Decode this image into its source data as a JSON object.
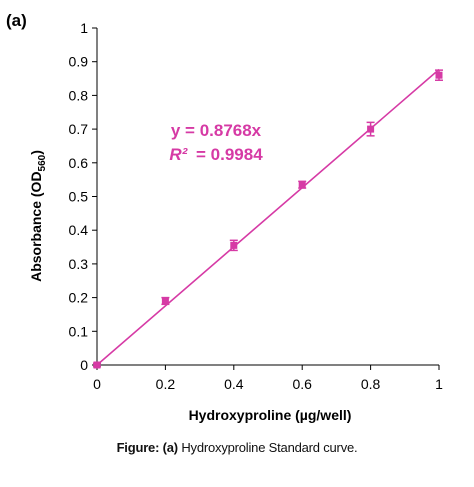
{
  "panel_label": "(a)",
  "caption": {
    "prefix": "Figure: (a)",
    "text": "Hydroxyproline Standard curve."
  },
  "colors": {
    "series": "#d63aa5",
    "axis": "#000000"
  },
  "chart_data": {
    "type": "scatter",
    "xlabel": "Hydroxyproline  (µg/well)",
    "ylabel_main": "Absorbance  (OD",
    "ylabel_sub": "560",
    "ylabel_end": ")",
    "xlim": [
      0,
      1
    ],
    "ylim": [
      0,
      1
    ],
    "x_ticks": [
      "0",
      "0.2",
      "0.4",
      "0.6",
      "0.8",
      "1"
    ],
    "y_ticks": [
      "0",
      "0.1",
      "0.2",
      "0.3",
      "0.4",
      "0.5",
      "0.6",
      "0.7",
      "0.8",
      "0.9",
      "1"
    ],
    "grid": false,
    "series": [
      {
        "marker": "square",
        "x": [
          0,
          0.2,
          0.4,
          0.6,
          0.8,
          1.0
        ],
        "y": [
          0,
          0.19,
          0.355,
          0.535,
          0.7,
          0.86
        ],
        "error": [
          0.005,
          0.01,
          0.015,
          0.01,
          0.02,
          0.015
        ]
      }
    ],
    "trendline": {
      "slope": 0.8768,
      "intercept": 0,
      "equation": "y = 0.8768x",
      "r2_label": "R²",
      "r2_value": "= 0.9984"
    }
  }
}
